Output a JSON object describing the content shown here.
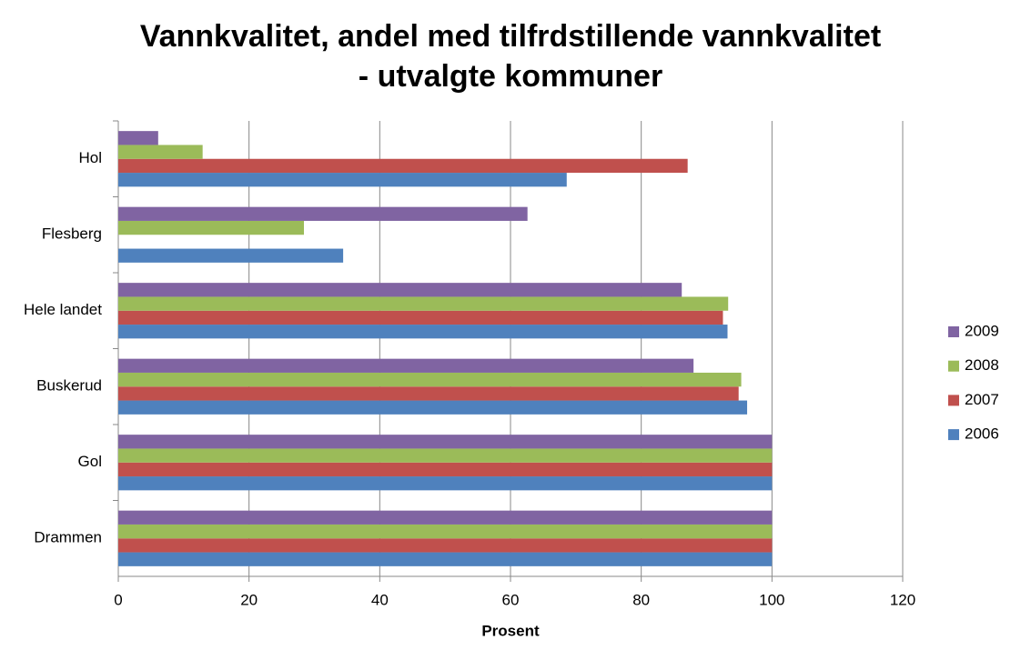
{
  "chart_data": {
    "type": "hbar",
    "title": [
      "Vannkvalitet, andel med tilfrdstillende vannkvalitet",
      "- utvalgte kommuner"
    ],
    "x_label": "Prosent",
    "categories": [
      "Drammen",
      "Gol",
      "Buskerud",
      "Hele landet",
      "Flesberg",
      "Hol"
    ],
    "series": [
      {
        "name": "2006",
        "color": "#4f81bd",
        "values": [
          100,
          100,
          96.2,
          93.2,
          34.4,
          68.6
        ]
      },
      {
        "name": "2007",
        "color": "#c0504d",
        "values": [
          100,
          100,
          94.9,
          92.5,
          null,
          87.1
        ]
      },
      {
        "name": "2008",
        "color": "#9bbb59",
        "values": [
          100,
          100,
          95.3,
          93.3,
          28.4,
          12.9
        ]
      },
      {
        "name": "2009",
        "color": "#8064a2",
        "values": [
          100,
          100,
          88.0,
          86.2,
          62.6,
          6.1
        ]
      }
    ],
    "xlim": [
      0,
      120
    ],
    "xticks": [
      0,
      20,
      40,
      60,
      80,
      100,
      120
    ],
    "grid": true,
    "legend": "right"
  }
}
